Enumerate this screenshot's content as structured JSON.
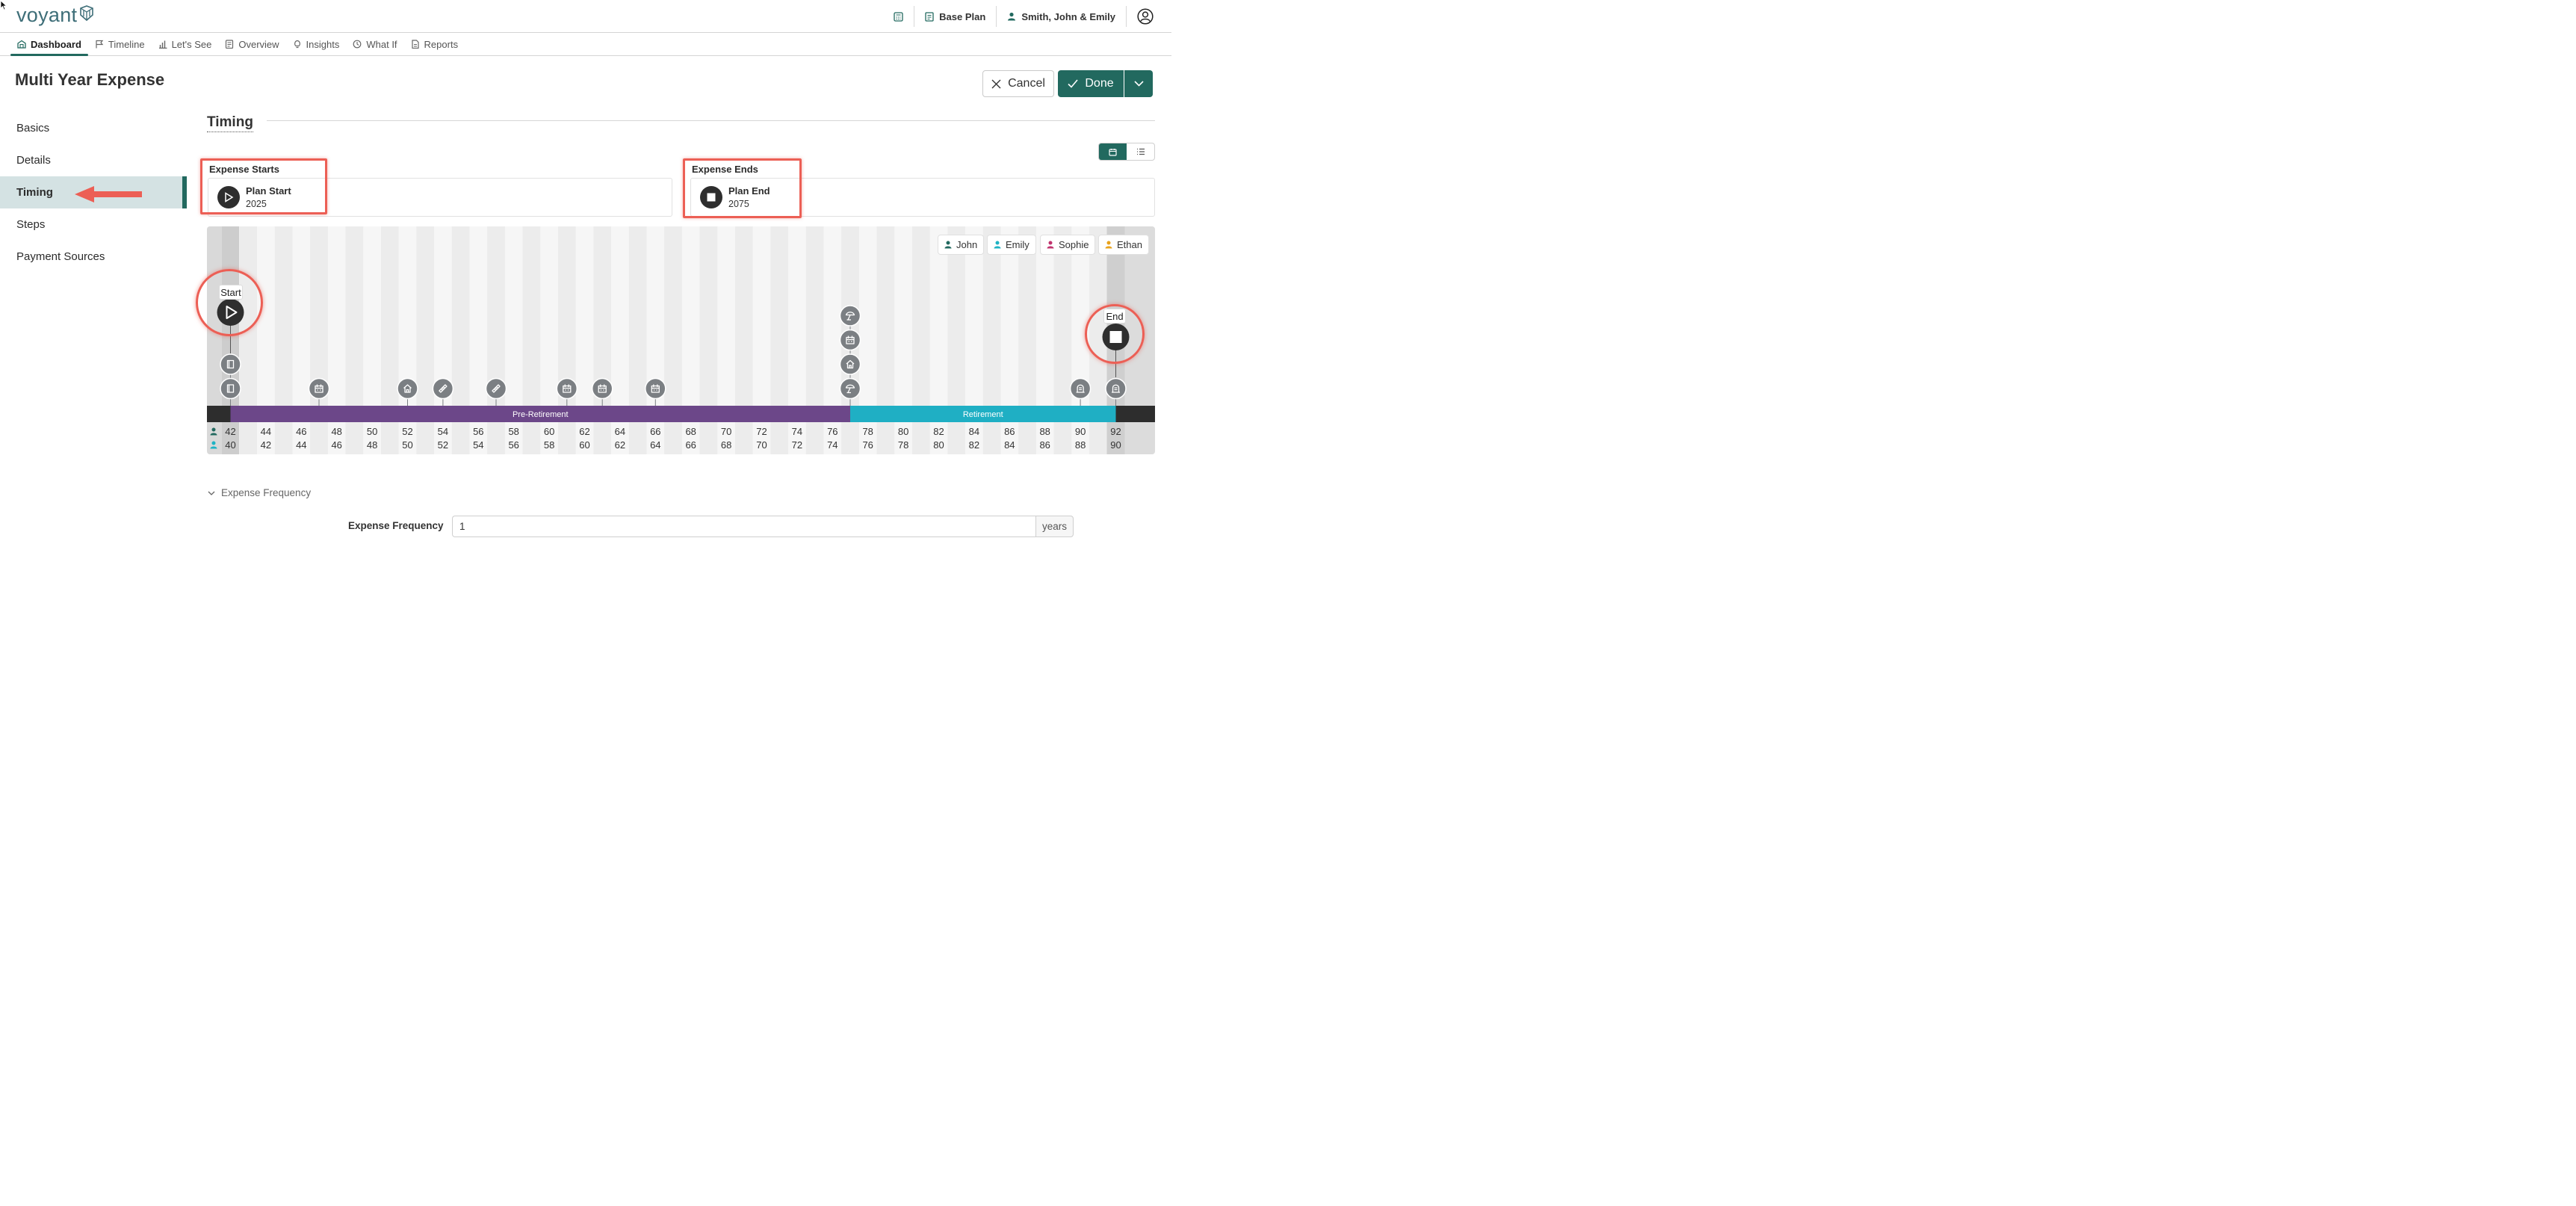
{
  "app": {
    "logo_text": "voyant",
    "logo_icon": "voyant-logo-mark"
  },
  "topbar": {
    "items": [
      {
        "icon": "calculator-icon",
        "label": ""
      },
      {
        "icon": "plan-icon",
        "label": "Base Plan"
      },
      {
        "icon": "client-icon",
        "label": "Smith, John & Emily"
      },
      {
        "icon": "user-account-icon",
        "label": ""
      }
    ]
  },
  "nav": {
    "tabs": [
      {
        "label": "Dashboard",
        "icon": "dashboard-icon",
        "active": true
      },
      {
        "label": "Timeline",
        "icon": "flag-icon",
        "active": false
      },
      {
        "label": "Let's See",
        "icon": "bar-chart-icon",
        "active": false
      },
      {
        "label": "Overview",
        "icon": "overview-icon",
        "active": false
      },
      {
        "label": "Insights",
        "icon": "lightbulb-icon",
        "active": false
      },
      {
        "label": "What If",
        "icon": "what-if-icon",
        "active": false
      },
      {
        "label": "Reports",
        "icon": "report-icon",
        "active": false
      }
    ]
  },
  "page": {
    "title": "Multi Year Expense",
    "cancel_label": "Cancel",
    "done_label": "Done"
  },
  "side_menu": {
    "items": [
      {
        "label": "Basics",
        "active": false
      },
      {
        "label": "Details",
        "active": false
      },
      {
        "label": "Timing",
        "active": true
      },
      {
        "label": "Steps",
        "active": false
      },
      {
        "label": "Payment Sources",
        "active": false
      }
    ]
  },
  "timing": {
    "section_title": "Timing",
    "view_toggle": [
      "calendar-view-icon",
      "list-view-icon"
    ],
    "expense_starts": {
      "label": "Expense Starts",
      "name": "Plan Start",
      "year": "2025",
      "icon": "play-icon"
    },
    "expense_ends": {
      "label": "Expense Ends",
      "name": "Plan End",
      "year": "2075",
      "icon": "stop-icon"
    }
  },
  "timeline": {
    "people": [
      {
        "name": "John",
        "color": "#22695f"
      },
      {
        "name": "Emily",
        "color": "#1fb3c4"
      },
      {
        "name": "Sophie",
        "color": "#c0336e"
      },
      {
        "name": "Ethan",
        "color": "#e9a31c"
      }
    ],
    "start_label": "Start",
    "end_label": "End",
    "phases": [
      {
        "label": "Pre-Retirement",
        "color": "#6c4789"
      },
      {
        "label": "Retirement",
        "color": "#1fafc4"
      }
    ],
    "john_ages": [
      42,
      44,
      46,
      48,
      50,
      52,
      54,
      56,
      58,
      60,
      62,
      64,
      66,
      68,
      70,
      72,
      74,
      76,
      78,
      80,
      82,
      84,
      86,
      88,
      90,
      92
    ],
    "emily_ages": [
      40,
      42,
      44,
      46,
      48,
      50,
      52,
      54,
      56,
      58,
      60,
      62,
      64,
      66,
      68,
      70,
      72,
      74,
      76,
      78,
      80,
      82,
      84,
      86,
      88,
      90
    ],
    "events": [
      {
        "age_index": 0,
        "icon": "book-icon",
        "stack": 0
      },
      {
        "age_index": 0,
        "icon": "book-icon",
        "stack": 1
      },
      {
        "age_index": 5,
        "icon": "calendar-icon",
        "stack": 0
      },
      {
        "age_index": 10,
        "icon": "home-icon",
        "stack": 0
      },
      {
        "age_index": 12,
        "icon": "bandage-icon",
        "stack": 0
      },
      {
        "age_index": 15,
        "icon": "bandage-icon",
        "stack": 0
      },
      {
        "age_index": 19,
        "icon": "calendar-icon",
        "stack": 0
      },
      {
        "age_index": 21,
        "icon": "calendar-icon",
        "stack": 0
      },
      {
        "age_index": 24,
        "icon": "calendar-icon",
        "stack": 0
      },
      {
        "age_index": 35,
        "icon": "beach-umbrella-icon",
        "stack": 0
      },
      {
        "age_index": 35,
        "icon": "home-icon",
        "stack": 1
      },
      {
        "age_index": 35,
        "icon": "calendar-icon",
        "stack": 2
      },
      {
        "age_index": 35,
        "icon": "beach-umbrella-icon",
        "stack": 3
      },
      {
        "age_index": 48,
        "icon": "headstone-icon",
        "stack": 0
      },
      {
        "age_index": 50,
        "icon": "headstone-icon",
        "stack": 0
      }
    ]
  },
  "frequency": {
    "toggle_label": "Expense Frequency",
    "field_label": "Expense Frequency",
    "value": "1",
    "unit": "years"
  },
  "annotations": {
    "highlight_color": "#ec5f55"
  }
}
